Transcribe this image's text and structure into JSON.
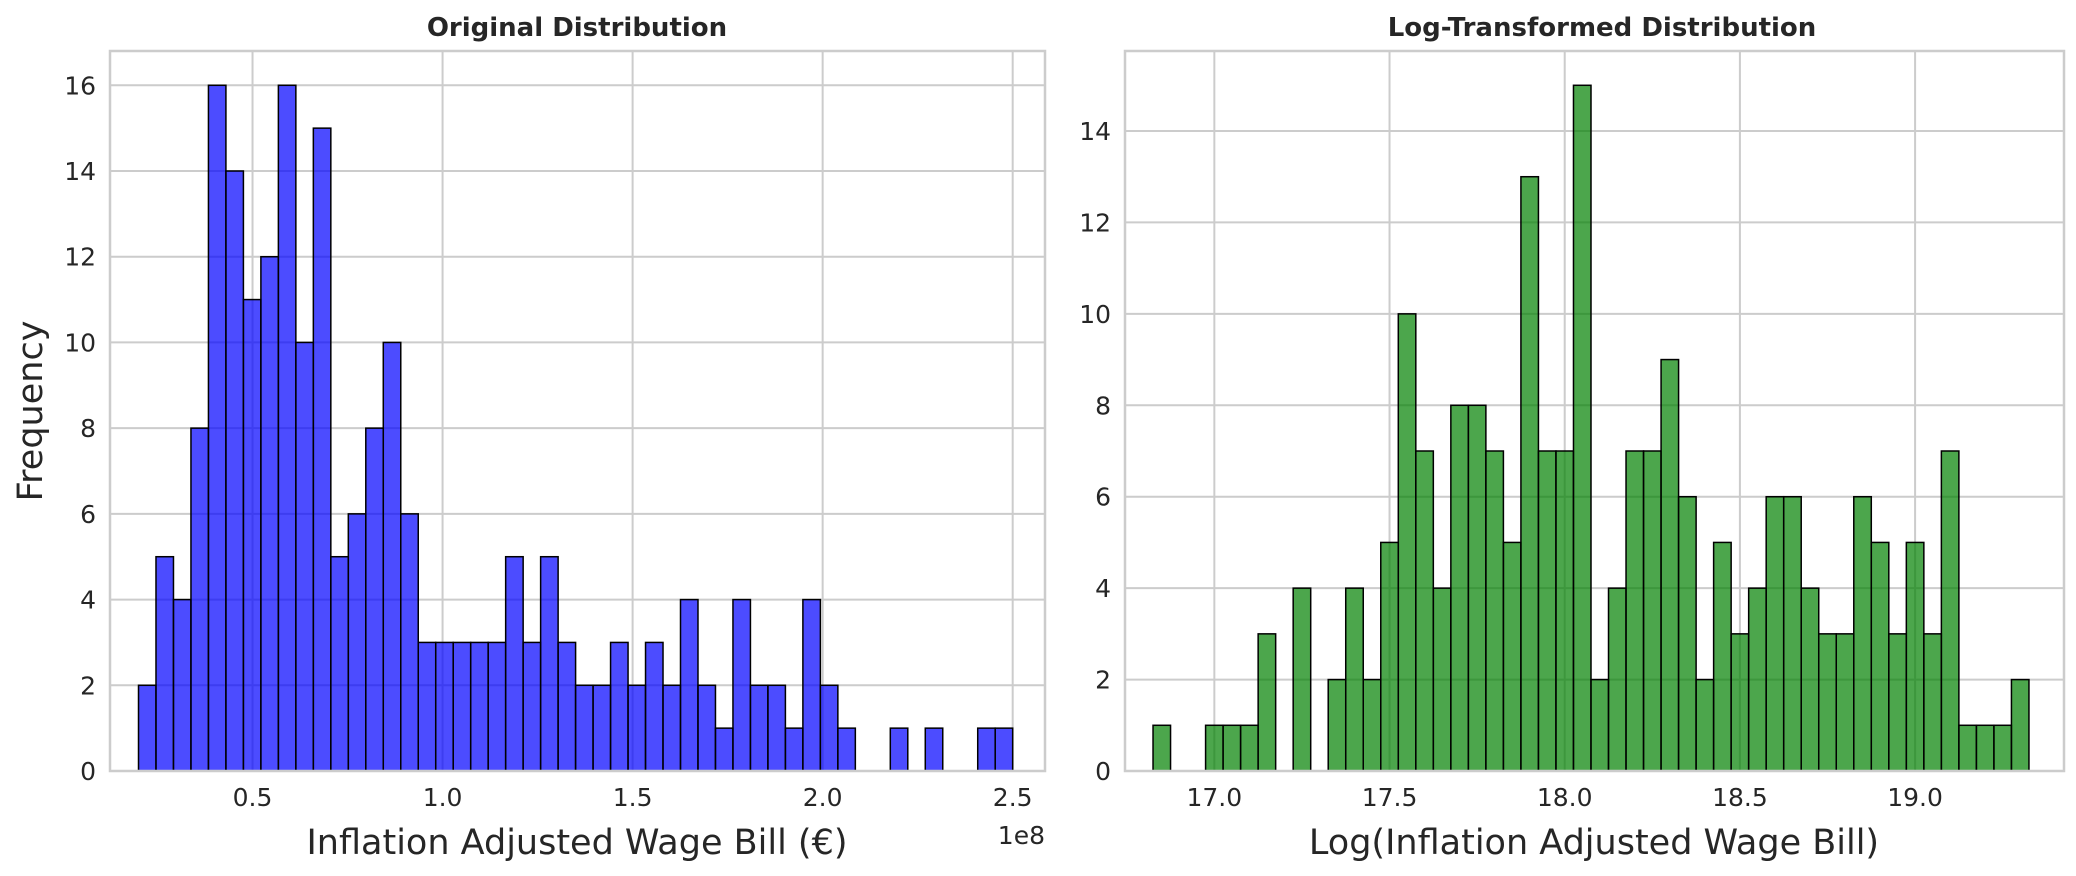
{
  "chart_data": [
    {
      "type": "bar",
      "title": "Original Distribution",
      "xlabel": "Inflation Adjusted Wage Bill (€)",
      "ylabel": "Frequency",
      "offset_label": "1e8",
      "color": "#0000ff",
      "edge_color": "#000000",
      "xlim": [
        0.125,
        2.585
      ],
      "ylim": [
        0,
        16.8
      ],
      "xticks": [
        0.5,
        1.0,
        1.5,
        2.0,
        2.5
      ],
      "xtick_labels": [
        "0.5",
        "1.0",
        "1.5",
        "2.0",
        "2.5"
      ],
      "yticks": [
        0,
        2,
        4,
        6,
        8,
        10,
        12,
        14,
        16
      ],
      "ytick_labels": [
        "0",
        "2",
        "4",
        "6",
        "8",
        "10",
        "12",
        "14",
        "16"
      ],
      "grid": true,
      "bin_start": 0.2,
      "bin_width": 0.046,
      "values": [
        2,
        5,
        4,
        8,
        16,
        14,
        11,
        12,
        16,
        10,
        15,
        5,
        6,
        8,
        10,
        6,
        3,
        3,
        3,
        3,
        3,
        5,
        3,
        5,
        3,
        2,
        2,
        3,
        2,
        3,
        2,
        4,
        2,
        1,
        4,
        2,
        2,
        1,
        4,
        2,
        1,
        0,
        0,
        1,
        0,
        1,
        0,
        0,
        1,
        1
      ]
    },
    {
      "type": "bar",
      "title": "Log-Transformed Distribution",
      "xlabel": "Log(Inflation Adjusted Wage Bill)",
      "ylabel": "",
      "color": "#008000",
      "edge_color": "#000000",
      "xlim": [
        16.745,
        19.425
      ],
      "ylim": [
        0,
        15.75
      ],
      "xticks": [
        17.0,
        17.5,
        18.0,
        18.5,
        19.0
      ],
      "xtick_labels": [
        "17.0",
        "17.5",
        "18.0",
        "18.5",
        "19.0"
      ],
      "yticks": [
        0,
        2,
        4,
        6,
        8,
        10,
        12,
        14
      ],
      "ytick_labels": [
        "0",
        "2",
        "4",
        "6",
        "8",
        "10",
        "12",
        "14"
      ],
      "grid": true,
      "bin_start": 16.825,
      "bin_width": 0.05,
      "values": [
        1,
        0,
        0,
        1,
        1,
        1,
        3,
        0,
        4,
        0,
        2,
        4,
        2,
        5,
        10,
        7,
        4,
        8,
        8,
        7,
        5,
        13,
        7,
        7,
        15,
        2,
        4,
        7,
        7,
        9,
        6,
        2,
        5,
        3,
        4,
        6,
        6,
        4,
        3,
        3,
        6,
        5,
        3,
        5,
        3,
        7,
        1,
        1,
        1,
        2
      ]
    }
  ]
}
